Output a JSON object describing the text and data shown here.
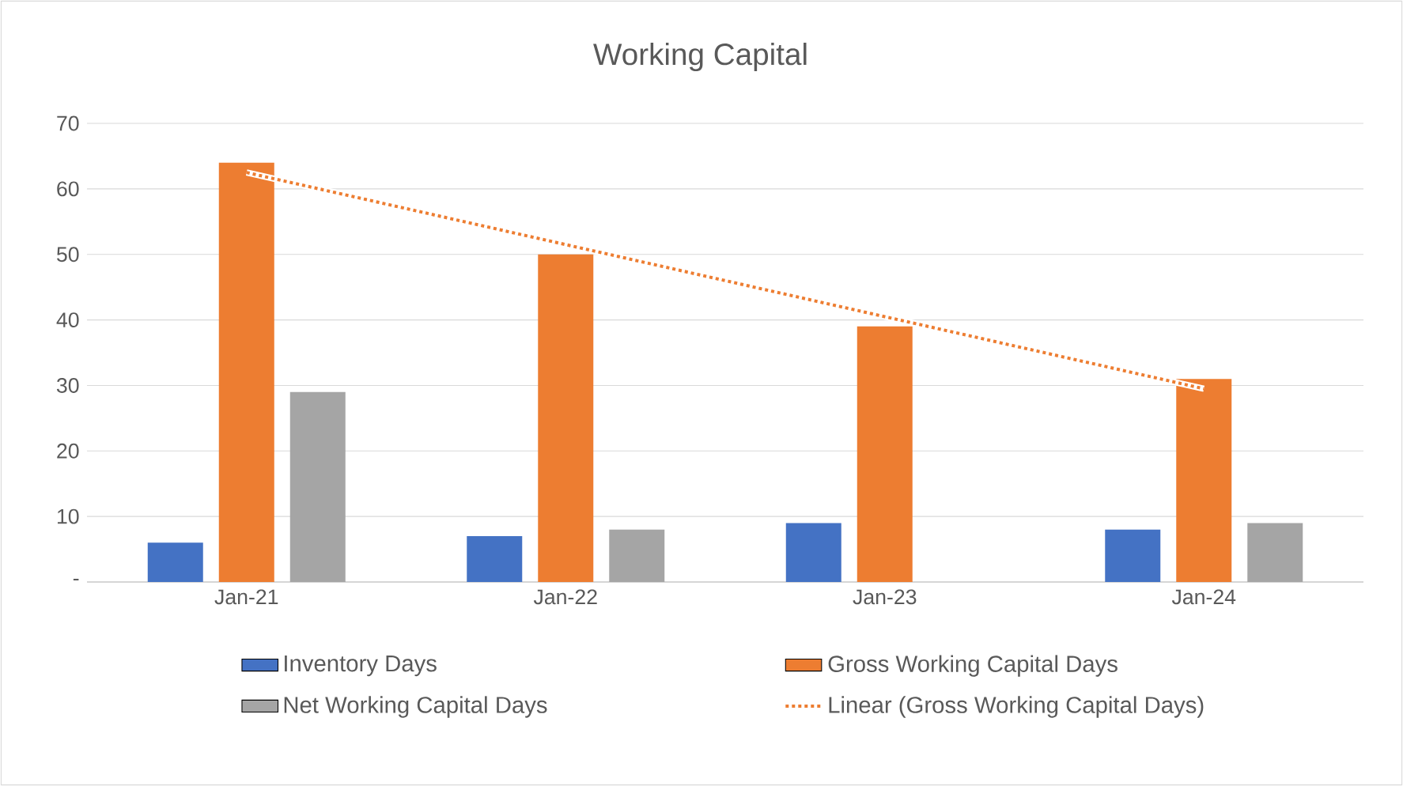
{
  "chart_data": {
    "type": "bar",
    "title": "Working Capital",
    "categories": [
      "Jan-21",
      "Jan-22",
      "Jan-23",
      "Jan-24"
    ],
    "series": [
      {
        "name": "Inventory Days",
        "color": "#4472c4",
        "values": [
          6,
          7,
          9,
          8
        ]
      },
      {
        "name": "Gross Working Capital Days",
        "color": "#ed7d31",
        "values": [
          64,
          50,
          39,
          31
        ]
      },
      {
        "name": "Net Working Capital Days",
        "color": "#a5a5a5",
        "values": [
          29,
          8,
          null,
          9
        ]
      },
      {
        "name": "Linear (Gross Working Capital Days)",
        "type": "line",
        "line_style": "dotted",
        "color": "#ed7d31",
        "values": [
          62.5,
          51.5,
          40.5,
          29.5
        ]
      }
    ],
    "ylim": [
      0,
      70
    ],
    "yticks": [
      {
        "value": 0,
        "label": "-"
      },
      10,
      20,
      30,
      40,
      50,
      60,
      70
    ],
    "grid": "y",
    "legend": "bottom"
  }
}
